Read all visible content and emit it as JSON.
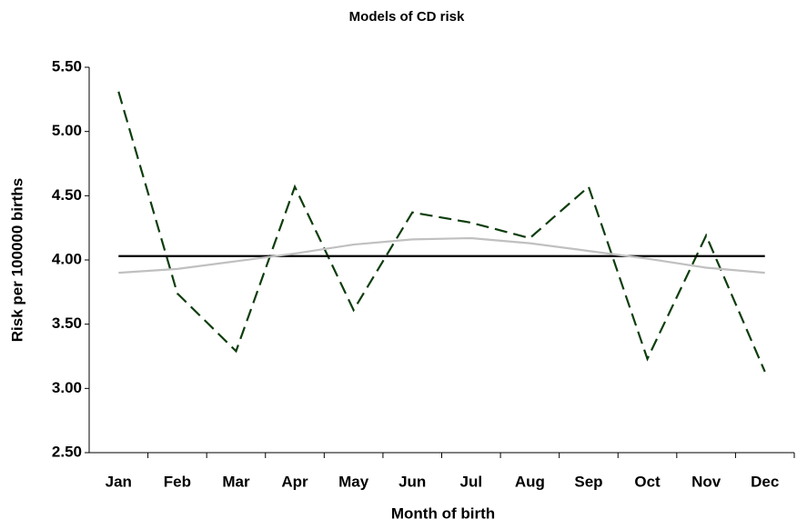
{
  "chart_data": {
    "type": "line",
    "title": "Models of CD risk",
    "xlabel": "Month of birth",
    "ylabel": "Risk per 100000 births",
    "categories": [
      "Jan",
      "Feb",
      "Mar",
      "Apr",
      "May",
      "Jun",
      "Jul",
      "Aug",
      "Sep",
      "Oct",
      "Nov",
      "Dec"
    ],
    "series": [
      {
        "color": "#0d3d0d",
        "dashed": true,
        "values": [
          5.31,
          3.74,
          3.29,
          4.57,
          3.61,
          4.37,
          4.29,
          4.17,
          4.57,
          3.23,
          4.19,
          3.13
        ]
      },
      {
        "color": "#000000",
        "dashed": false,
        "values": [
          4.03,
          4.03,
          4.03,
          4.03,
          4.03,
          4.03,
          4.03,
          4.03,
          4.03,
          4.03,
          4.03,
          4.03
        ]
      },
      {
        "color": "#c0c0c0",
        "dashed": false,
        "values": [
          3.9,
          3.93,
          3.99,
          4.05,
          4.12,
          4.16,
          4.17,
          4.13,
          4.07,
          4.01,
          3.94,
          3.9
        ]
      }
    ],
    "ylim": [
      2.5,
      5.5
    ],
    "yticks": [
      {
        "value": 2.5,
        "label": "2.50"
      },
      {
        "value": 3,
        "label": "3.00"
      },
      {
        "value": 3.5,
        "label": "3.50"
      },
      {
        "value": 4,
        "label": "4.00"
      },
      {
        "value": 4.5,
        "label": "4.50"
      },
      {
        "value": 5,
        "label": "5.00"
      },
      {
        "value": 5.5,
        "label": "5.50"
      }
    ],
    "grid": false
  }
}
